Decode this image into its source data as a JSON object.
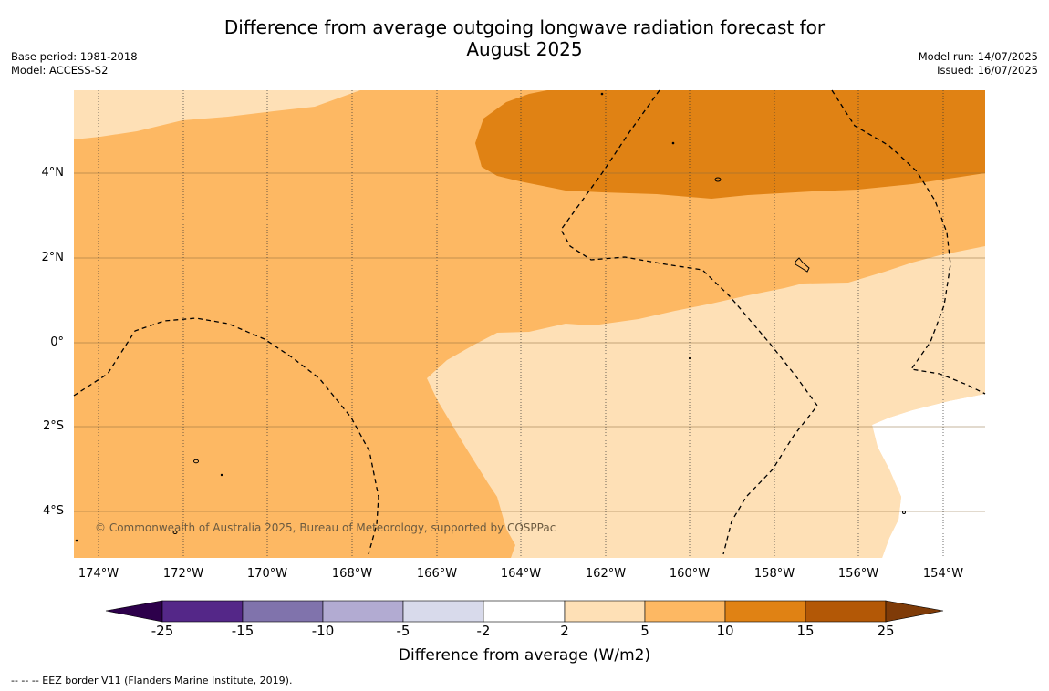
{
  "title_line1": "Difference from average outgoing longwave radiation forecast for",
  "title_line2": "August 2025",
  "base_period": "Base period: 1981-2018",
  "model": "Model: ACCESS-S2",
  "model_run": "Model run: 14/07/2025",
  "issued": "Issued: 16/07/2025",
  "copyright": "© Commonwealth of Australia 2025, Bureau of Meteorology, supported by COSPPac",
  "footer": "--  --  -- EEZ border V11 (Flanders Marine Institute, 2019).",
  "x_ticks": [
    "174°W",
    "172°W",
    "170°W",
    "168°W",
    "166°W",
    "164°W",
    "162°W",
    "160°W",
    "158°W",
    "156°W",
    "154°W"
  ],
  "y_ticks": [
    "4°N",
    "2°N",
    "0°",
    "2°S",
    "4°S"
  ],
  "colorbar": {
    "title": "Difference from average (W/m2)",
    "labels": [
      "-25",
      "-15",
      "-10",
      "-5",
      "-2",
      "2",
      "5",
      "10",
      "15",
      "25"
    ],
    "colors": {
      "below_min": "#2d004b",
      "n25_n15": "#542788",
      "n15_n10": "#8073ac",
      "n10_n5": "#b2abd2",
      "n5_n2": "#d8daeb",
      "n2_2": "#ffffff",
      "p2_5": "#fee0b6",
      "p5_10": "#fdb863",
      "p10_15": "#e08214",
      "p15_25": "#b35806",
      "above_max": "#7f3b08"
    }
  }
}
